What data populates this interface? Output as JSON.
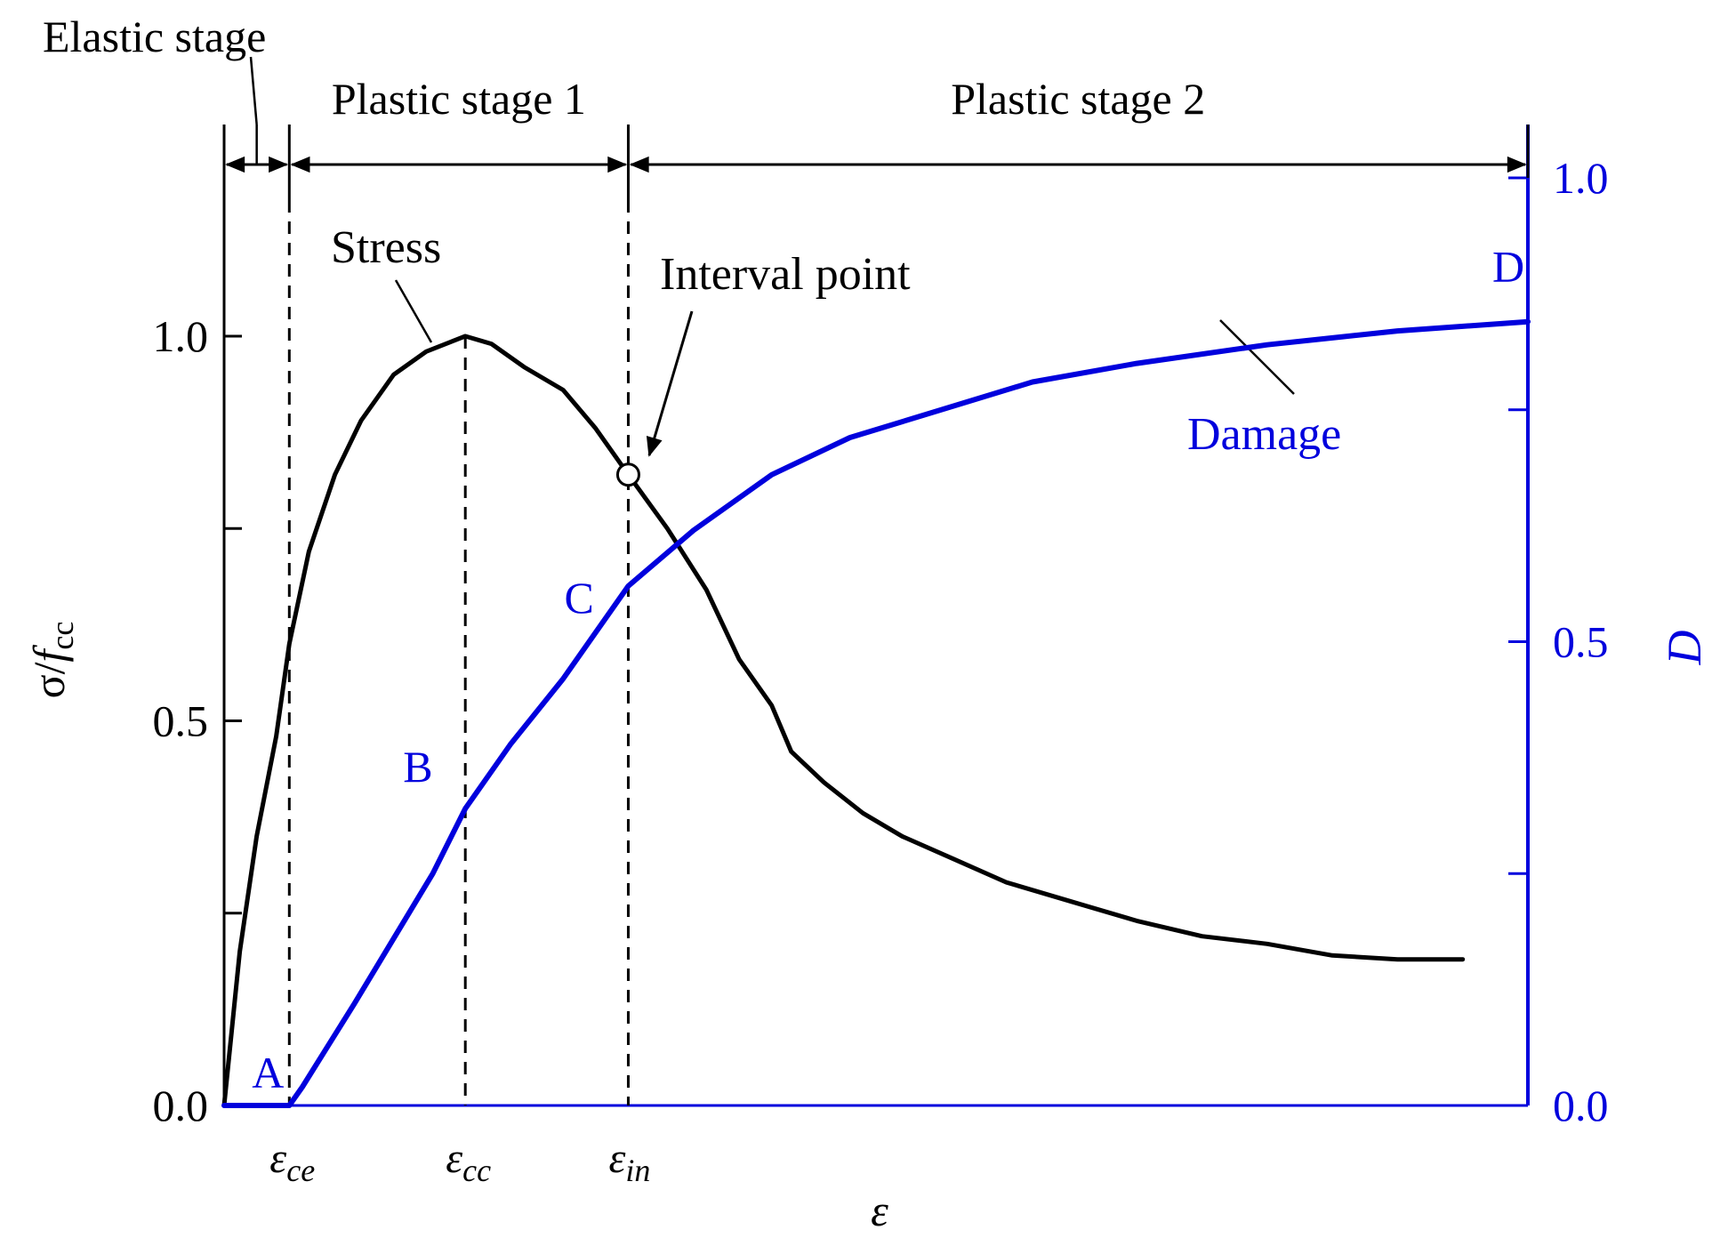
{
  "chart_data": {
    "type": "line",
    "title": "",
    "xlabel": "ε",
    "ylabel_left": {
      "main": "σ/",
      "italic": "f",
      "sub": "cc"
    },
    "ylabel_right": "D",
    "ylim_left": [
      0,
      1.2
    ],
    "ylim_right": [
      0,
      1.0
    ],
    "xlim": [
      0,
      1
    ],
    "left_ticks": [
      {
        "value": 0,
        "label": "0.0"
      },
      {
        "value": 0.25,
        "label": ""
      },
      {
        "value": 0.5,
        "label": "0.5"
      },
      {
        "value": 0.75,
        "label": ""
      },
      {
        "value": 1.0,
        "label": "1.0"
      }
    ],
    "right_ticks": [
      {
        "value": 0,
        "label": "0.0"
      },
      {
        "value": 0.25,
        "label": ""
      },
      {
        "value": 0.5,
        "label": "0.5"
      },
      {
        "value": 0.75,
        "label": ""
      },
      {
        "value": 1.0,
        "label": "1.0"
      }
    ],
    "x_markers": [
      {
        "name": "ce",
        "x": 0.05,
        "main": "ε",
        "sub": "ce"
      },
      {
        "name": "cc",
        "x": 0.185,
        "main": "ε",
        "sub": "cc"
      },
      {
        "name": "in",
        "x": 0.31,
        "main": "ε",
        "sub": "in"
      }
    ],
    "stages": [
      {
        "label": "Elastic stage",
        "x0": 0.0,
        "x1": 0.05
      },
      {
        "label": "Plastic stage 1",
        "x0": 0.05,
        "x1": 0.31
      },
      {
        "label": "Plastic stage 2",
        "x0": 0.31,
        "x1": 1.0
      }
    ],
    "series": [
      {
        "name": "Stress",
        "axis": "left",
        "color": "#000000",
        "points": [
          [
            0.0,
            0.0
          ],
          [
            0.012,
            0.2
          ],
          [
            0.025,
            0.35
          ],
          [
            0.04,
            0.48
          ],
          [
            0.05,
            0.6
          ],
          [
            0.065,
            0.72
          ],
          [
            0.085,
            0.82
          ],
          [
            0.105,
            0.89
          ],
          [
            0.13,
            0.95
          ],
          [
            0.155,
            0.98
          ],
          [
            0.185,
            1.0
          ],
          [
            0.205,
            0.99
          ],
          [
            0.23,
            0.96
          ],
          [
            0.26,
            0.93
          ],
          [
            0.285,
            0.88
          ],
          [
            0.31,
            0.82
          ],
          [
            0.34,
            0.75
          ],
          [
            0.37,
            0.67
          ],
          [
            0.395,
            0.58
          ],
          [
            0.42,
            0.52
          ],
          [
            0.435,
            0.46
          ],
          [
            0.46,
            0.42
          ],
          [
            0.49,
            0.38
          ],
          [
            0.52,
            0.35
          ],
          [
            0.56,
            0.32
          ],
          [
            0.6,
            0.29
          ],
          [
            0.65,
            0.265
          ],
          [
            0.7,
            0.24
          ],
          [
            0.75,
            0.22
          ],
          [
            0.8,
            0.21
          ],
          [
            0.85,
            0.195
          ],
          [
            0.9,
            0.19
          ],
          [
            0.95,
            0.19
          ],
          [
            0.95,
            0.19
          ]
        ]
      },
      {
        "name": "Damage",
        "axis": "right",
        "color": "#0000dd",
        "points": [
          [
            0.0,
            0.0
          ],
          [
            0.05,
            0.0
          ],
          [
            0.06,
            0.02
          ],
          [
            0.08,
            0.065
          ],
          [
            0.1,
            0.11
          ],
          [
            0.13,
            0.18
          ],
          [
            0.16,
            0.25
          ],
          [
            0.185,
            0.32
          ],
          [
            0.22,
            0.39
          ],
          [
            0.26,
            0.46
          ],
          [
            0.31,
            0.56
          ],
          [
            0.36,
            0.62
          ],
          [
            0.42,
            0.68
          ],
          [
            0.48,
            0.72
          ],
          [
            0.55,
            0.75
          ],
          [
            0.62,
            0.78
          ],
          [
            0.7,
            0.8
          ],
          [
            0.8,
            0.82
          ],
          [
            0.9,
            0.835
          ],
          [
            1.0,
            0.845
          ]
        ]
      }
    ],
    "points": [
      {
        "label": "A",
        "x": 0.05,
        "axis": "right",
        "y": 0.0,
        "color": "#0000dd"
      },
      {
        "label": "B",
        "x": 0.185,
        "axis": "right",
        "y": 0.32,
        "color": "#0000dd"
      },
      {
        "label": "C",
        "x": 0.31,
        "axis": "right",
        "y": 0.56,
        "color": "#0000dd"
      },
      {
        "label": "D",
        "x": 1.0,
        "axis": "right",
        "y": 0.845,
        "color": "#0000dd"
      }
    ],
    "interval_point": {
      "x": 0.31,
      "y": 0.82,
      "axis": "left"
    },
    "annotations": [
      {
        "name": "stress",
        "text": "Stress",
        "color": "#000000"
      },
      {
        "name": "interval",
        "text": "Interval point",
        "color": "#000000"
      },
      {
        "name": "damage",
        "text": "Damage",
        "color": "#0000dd"
      }
    ],
    "grid": false,
    "legend": "none"
  }
}
